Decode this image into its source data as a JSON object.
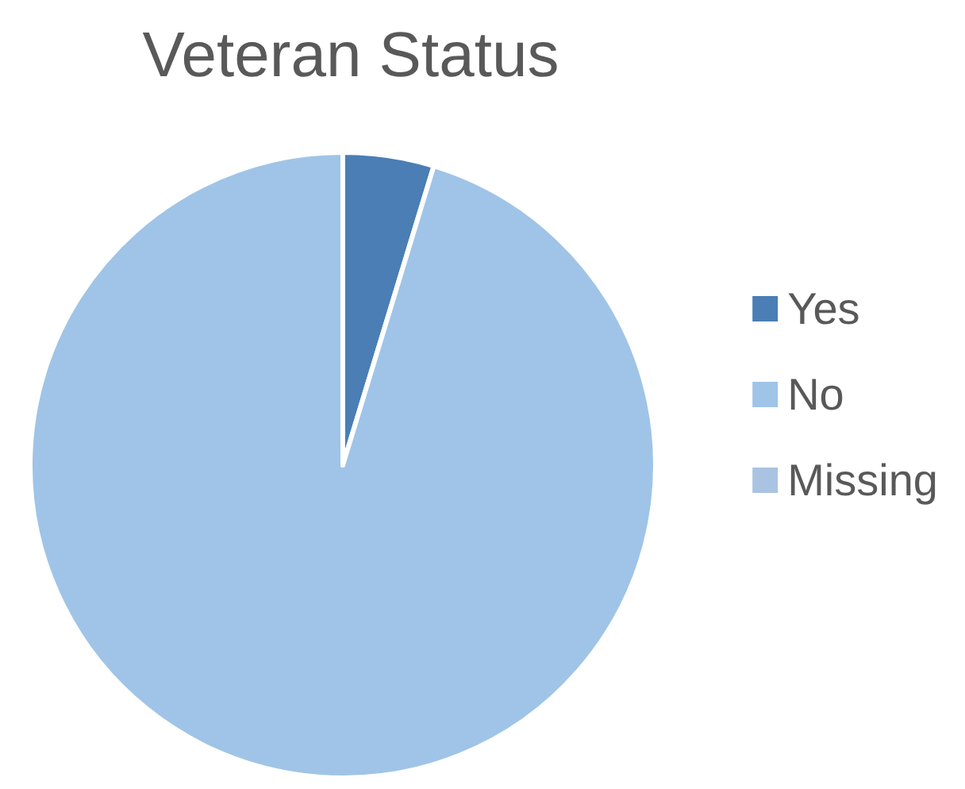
{
  "chart_data": {
    "type": "pie",
    "title": "Veteran Status",
    "categories": [
      "Yes",
      "No",
      "Missing"
    ],
    "values": [
      4.7,
      95.3,
      0
    ],
    "colors": [
      "#4a7eb4",
      "#9fc4e7",
      "#aac3e3"
    ],
    "legend": "right"
  }
}
